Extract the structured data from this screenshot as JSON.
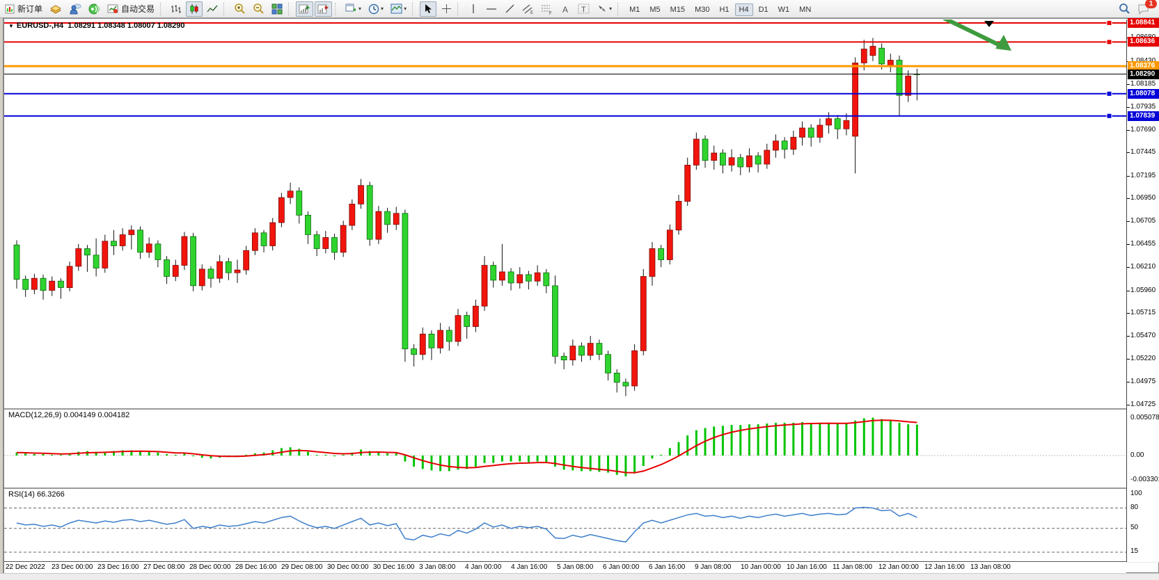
{
  "toolbar": {
    "new_order_label": "新订单",
    "auto_trading_label": "自动交易",
    "timeframes": [
      "M1",
      "M5",
      "M15",
      "M30",
      "H1",
      "H4",
      "D1",
      "W1",
      "MN"
    ],
    "active_timeframe": "H4",
    "notification_count": "1"
  },
  "chart": {
    "title_symbol": "EURUSD-,H4",
    "title_ohlc": "1.08291 1.08348 1.08007 1.08290"
  },
  "indicators": {
    "macd_label": "MACD(12,26,9) 0.004149 0.004182",
    "rsi_label": "RSI(14) 66.3266"
  },
  "chart_data": {
    "type": "candlestick",
    "symbol_period": "EURUSD-,H4",
    "current": {
      "open": "1.08291",
      "high": "1.08348",
      "low": "1.08007",
      "close": "1.08290"
    },
    "up_color": "#f2150d",
    "down_color": "#2fd42f",
    "price_axis_ticks": [
      "1.08680",
      "1.08430",
      "1.08185",
      "1.07935",
      "1.07690",
      "1.07445",
      "1.07195",
      "1.06950",
      "1.06705",
      "1.06455",
      "1.06210",
      "1.05960",
      "1.05715",
      "1.05470",
      "1.05220",
      "1.04975",
      "1.04725"
    ],
    "price_badges": [
      {
        "label": "1.08841",
        "price": 1.08841,
        "bg": "#e60000",
        "fg": "#ffffff"
      },
      {
        "label": "1.08636",
        "price": 1.08636,
        "bg": "#e60000",
        "fg": "#ffffff"
      },
      {
        "label": "1.08376",
        "price": 1.08376,
        "bg": "#ff9900",
        "fg": "#ffffff"
      },
      {
        "label": "1.08290",
        "price": 1.0829,
        "bg": "#000000",
        "fg": "#ffffff"
      },
      {
        "label": "1.08078",
        "price": 1.08078,
        "bg": "#0000d8",
        "fg": "#ffffff"
      },
      {
        "label": "1.07839",
        "price": 1.07839,
        "bg": "#0000d8",
        "fg": "#ffffff"
      }
    ],
    "h_lines": [
      {
        "price": 1.08841,
        "color": "#e60000",
        "width": 2,
        "handle": true
      },
      {
        "price": 1.08636,
        "color": "#e60000",
        "width": 2,
        "handle": true
      },
      {
        "price": 1.08376,
        "color": "#ff9900",
        "width": 3,
        "handle": false
      },
      {
        "price": 1.0829,
        "color": "#000000",
        "width": 1,
        "handle": false
      },
      {
        "price": 1.08078,
        "color": "#0000d8",
        "width": 2,
        "handle": true
      },
      {
        "price": 1.07839,
        "color": "#0000d8",
        "width": 2,
        "handle": true
      }
    ],
    "dates": [
      "22 Dec 2022",
      "23 Dec 00:00",
      "23 Dec 16:00",
      "27 Dec 08:00",
      "28 Dec 00:00",
      "28 Dec 16:00",
      "29 Dec 08:00",
      "30 Dec 00:00",
      "30 Dec 16:00",
      "3 Jan 08:00",
      "4 Jan 00:00",
      "4 Jan 16:00",
      "5 Jan 08:00",
      "6 Jan 00:00",
      "6 Jan 16:00",
      "9 Jan 08:00",
      "10 Jan 00:00",
      "10 Jan 16:00",
      "11 Jan 08:00",
      "12 Jan 00:00",
      "12 Jan 16:00",
      "13 Jan 08:00"
    ],
    "candles": [
      [
        1.0645,
        1.065,
        1.0598,
        1.0608
      ],
      [
        1.0608,
        1.0612,
        1.0589,
        1.0597
      ],
      [
        1.0597,
        1.0614,
        1.0592,
        1.0609
      ],
      [
        1.0609,
        1.0613,
        1.0586,
        1.0596
      ],
      [
        1.0596,
        1.0611,
        1.059,
        1.0606
      ],
      [
        1.0606,
        1.0609,
        1.0587,
        1.0599
      ],
      [
        1.0599,
        1.0627,
        1.0595,
        1.0622
      ],
      [
        1.0622,
        1.0646,
        1.0617,
        1.0641
      ],
      [
        1.0641,
        1.0645,
        1.0616,
        1.0634
      ],
      [
        1.0634,
        1.0652,
        1.0611,
        1.062
      ],
      [
        1.062,
        1.0656,
        1.0615,
        1.0649
      ],
      [
        1.0649,
        1.0661,
        1.0634,
        1.0644
      ],
      [
        1.0644,
        1.0663,
        1.0639,
        1.0656
      ],
      [
        1.0656,
        1.0666,
        1.064,
        1.0661
      ],
      [
        1.0661,
        1.0665,
        1.063,
        1.0637
      ],
      [
        1.0637,
        1.0653,
        1.0631,
        1.0646
      ],
      [
        1.0646,
        1.065,
        1.0621,
        1.0629
      ],
      [
        1.0629,
        1.0633,
        1.0603,
        1.0611
      ],
      [
        1.0611,
        1.0629,
        1.0606,
        1.0623
      ],
      [
        1.0623,
        1.0659,
        1.0618,
        1.0654
      ],
      [
        1.0654,
        1.0658,
        1.0595,
        1.0601
      ],
      [
        1.0601,
        1.0624,
        1.0596,
        1.0619
      ],
      [
        1.0619,
        1.0622,
        1.0599,
        1.0609
      ],
      [
        1.0609,
        1.0634,
        1.0604,
        1.0627
      ],
      [
        1.0627,
        1.0631,
        1.0607,
        1.0615
      ],
      [
        1.0615,
        1.0629,
        1.0604,
        1.0618
      ],
      [
        1.0618,
        1.0644,
        1.0613,
        1.0639
      ],
      [
        1.0639,
        1.0663,
        1.0634,
        1.0658
      ],
      [
        1.0658,
        1.0661,
        1.0637,
        1.0644
      ],
      [
        1.0644,
        1.0674,
        1.0639,
        1.0669
      ],
      [
        1.0669,
        1.0701,
        1.0664,
        1.0696
      ],
      [
        1.0696,
        1.0712,
        1.0689,
        1.0703
      ],
      [
        1.0703,
        1.0707,
        1.0668,
        1.0677
      ],
      [
        1.0677,
        1.0681,
        1.0646,
        1.0656
      ],
      [
        1.0656,
        1.066,
        1.0633,
        1.0641
      ],
      [
        1.0641,
        1.066,
        1.0636,
        1.0653
      ],
      [
        1.0653,
        1.0657,
        1.0629,
        1.0637
      ],
      [
        1.0637,
        1.0671,
        1.0632,
        1.0666
      ],
      [
        1.0666,
        1.0694,
        1.0661,
        1.0689
      ],
      [
        1.0689,
        1.0716,
        1.0684,
        1.0709
      ],
      [
        1.0709,
        1.0713,
        1.0644,
        1.0651
      ],
      [
        1.0651,
        1.0687,
        1.0646,
        1.0681
      ],
      [
        1.0681,
        1.0685,
        1.0658,
        1.0667
      ],
      [
        1.0667,
        1.0686,
        1.0661,
        1.0679
      ],
      [
        1.0679,
        1.0683,
        1.0519,
        1.0533
      ],
      [
        1.0533,
        1.0538,
        1.0514,
        1.0527
      ],
      [
        1.0527,
        1.0556,
        1.0521,
        1.0549
      ],
      [
        1.0549,
        1.0553,
        1.0521,
        1.0534
      ],
      [
        1.0534,
        1.0561,
        1.0528,
        1.0553
      ],
      [
        1.0553,
        1.0557,
        1.0531,
        1.0541
      ],
      [
        1.0541,
        1.0576,
        1.0536,
        1.0569
      ],
      [
        1.0569,
        1.0573,
        1.0544,
        1.0557
      ],
      [
        1.0557,
        1.0586,
        1.0551,
        1.0579
      ],
      [
        1.0579,
        1.0633,
        1.0574,
        1.0623
      ],
      [
        1.0623,
        1.0627,
        1.0599,
        1.0607
      ],
      [
        1.0607,
        1.0646,
        1.0601,
        1.0616
      ],
      [
        1.0616,
        1.062,
        1.0596,
        1.0604
      ],
      [
        1.0604,
        1.0621,
        1.0598,
        1.0613
      ],
      [
        1.0613,
        1.0617,
        1.0597,
        1.0606
      ],
      [
        1.0606,
        1.0623,
        1.0601,
        1.0615
      ],
      [
        1.0615,
        1.0619,
        1.0593,
        1.0601
      ],
      [
        1.0601,
        1.0612,
        1.0517,
        1.0525
      ],
      [
        1.0525,
        1.0529,
        1.0511,
        1.0521
      ],
      [
        1.0521,
        1.0543,
        1.0515,
        1.0536
      ],
      [
        1.0536,
        1.054,
        1.0519,
        1.0526
      ],
      [
        1.0526,
        1.0547,
        1.0521,
        1.0539
      ],
      [
        1.0539,
        1.0543,
        1.0521,
        1.0527
      ],
      [
        1.0527,
        1.0531,
        1.0499,
        1.0507
      ],
      [
        1.0507,
        1.0511,
        1.0486,
        1.0497
      ],
      [
        1.0497,
        1.0501,
        1.0482,
        1.0493
      ],
      [
        1.0493,
        1.0538,
        1.0488,
        1.0531
      ],
      [
        1.0531,
        1.0619,
        1.0526,
        1.0611
      ],
      [
        1.0611,
        1.0648,
        1.0601,
        1.0641
      ],
      [
        1.0641,
        1.0645,
        1.0621,
        1.0629
      ],
      [
        1.0629,
        1.0667,
        1.0624,
        1.0661
      ],
      [
        1.0661,
        1.0699,
        1.0656,
        1.0692
      ],
      [
        1.0692,
        1.0739,
        1.0687,
        1.0731
      ],
      [
        1.0731,
        1.0766,
        1.0726,
        1.0759
      ],
      [
        1.0759,
        1.0763,
        1.0728,
        1.0736
      ],
      [
        1.0736,
        1.0752,
        1.0726,
        1.0744
      ],
      [
        1.0744,
        1.0748,
        1.0722,
        1.0731
      ],
      [
        1.0731,
        1.0748,
        1.0724,
        1.0739
      ],
      [
        1.0739,
        1.0743,
        1.072,
        1.0729
      ],
      [
        1.0729,
        1.0749,
        1.0723,
        1.0741
      ],
      [
        1.0741,
        1.0745,
        1.0723,
        1.0732
      ],
      [
        1.0732,
        1.0754,
        1.0727,
        1.0747
      ],
      [
        1.0747,
        1.0764,
        1.0739,
        1.0757
      ],
      [
        1.0757,
        1.0761,
        1.0738,
        1.0748
      ],
      [
        1.0748,
        1.0768,
        1.0742,
        1.0761
      ],
      [
        1.0761,
        1.0778,
        1.0752,
        1.0771
      ],
      [
        1.0771,
        1.0775,
        1.0751,
        1.0761
      ],
      [
        1.0761,
        1.0781,
        1.0755,
        1.0774
      ],
      [
        1.0774,
        1.0788,
        1.0765,
        1.0781
      ],
      [
        1.0781,
        1.0785,
        1.0759,
        1.077
      ],
      [
        1.077,
        1.0787,
        1.0763,
        1.0779
      ],
      [
        1.0762,
        1.0847,
        1.0722,
        1.0841
      ],
      [
        1.0841,
        1.0866,
        1.0833,
        1.0856
      ],
      [
        1.0849,
        1.0868,
        1.0843,
        1.0859
      ],
      [
        1.0857,
        1.0862,
        1.0834,
        1.084
      ],
      [
        1.0838,
        1.0851,
        1.0831,
        1.0844
      ],
      [
        1.0844,
        1.0849,
        1.0784,
        1.0806
      ],
      [
        1.0806,
        1.0833,
        1.0799,
        1.0827
      ],
      [
        1.08291,
        1.08348,
        1.08007,
        1.0829
      ]
    ],
    "macd": {
      "params": "12,26,9",
      "main_value": "0.004149",
      "signal_value": "0.004182",
      "axis_labels": [
        {
          "text": "0.005078",
          "value": 0.005078
        },
        {
          "text": "0.00",
          "value": 0
        },
        {
          "text": "-0.003301",
          "value": -0.003301
        }
      ],
      "histogram_color": "#00c400",
      "signal_color": "#e60000",
      "values": [
        0.0004,
        0.0003,
        0.0002,
        0.0002,
        0.0001,
        0.0001,
        0.0003,
        0.0005,
        0.0006,
        0.0005,
        0.0005,
        0.0006,
        0.0007,
        0.0007,
        0.0006,
        0.0005,
        0.0004,
        0.0002,
        0.0001,
        0.0003,
        -0.0001,
        -0.0003,
        -0.0004,
        -0.0003,
        -0.0002,
        -0.0001,
        0.0001,
        0.0003,
        0.0004,
        0.0007,
        0.001,
        0.0011,
        0.0009,
        0.0005,
        0.0001,
        0.0001,
        -0.0001,
        0.0001,
        0.0004,
        0.0008,
        0.0006,
        0.0005,
        0.0003,
        0.0003,
        -0.0008,
        -0.0015,
        -0.0018,
        -0.002,
        -0.0021,
        -0.0021,
        -0.0019,
        -0.0018,
        -0.0015,
        -0.001,
        -0.001,
        -0.0008,
        -0.0008,
        -0.0008,
        -0.0009,
        -0.0008,
        -0.0009,
        -0.0015,
        -0.0019,
        -0.002,
        -0.0021,
        -0.0021,
        -0.0022,
        -0.0023,
        -0.0026,
        -0.0028,
        -0.0024,
        -0.0014,
        -0.0004,
        0.0001,
        0.001,
        0.0018,
        0.0027,
        0.0034,
        0.0037,
        0.0039,
        0.004,
        0.0041,
        0.0041,
        0.0042,
        0.0042,
        0.0043,
        0.0044,
        0.0044,
        0.0044,
        0.0045,
        0.0044,
        0.0044,
        0.0044,
        0.0043,
        0.0043,
        0.0047,
        0.005,
        0.00508,
        0.0049,
        0.0047,
        0.0044,
        0.0042,
        0.004149
      ]
    },
    "rsi": {
      "period": "14",
      "value": "66.3266",
      "line_color": "#3d7ecb",
      "axis_labels": [
        {
          "text": "100",
          "value": 100
        },
        {
          "text": "80",
          "value": 80
        },
        {
          "text": "50",
          "value": 50
        },
        {
          "text": "15",
          "value": 15
        }
      ],
      "dashed_levels": [
        80,
        50,
        15
      ],
      "values": [
        58,
        55,
        56,
        53,
        55,
        52,
        58,
        62,
        60,
        58,
        61,
        59,
        62,
        63,
        60,
        62,
        59,
        56,
        58,
        63,
        50,
        53,
        51,
        55,
        53,
        54,
        57,
        60,
        58,
        62,
        66,
        68,
        61,
        55,
        51,
        53,
        50,
        55,
        60,
        65,
        55,
        58,
        54,
        57,
        35,
        33,
        40,
        37,
        42,
        39,
        47,
        43,
        49,
        58,
        52,
        55,
        50,
        53,
        51,
        53,
        49,
        36,
        35,
        40,
        37,
        41,
        38,
        35,
        32,
        30,
        45,
        58,
        62,
        58,
        62,
        66,
        70,
        72,
        68,
        69,
        66,
        68,
        65,
        68,
        66,
        69,
        71,
        68,
        70,
        72,
        69,
        71,
        72,
        70,
        71,
        80,
        81,
        80,
        76,
        77,
        68,
        72,
        66.3266
      ]
    },
    "annotations": {
      "arrow_color": "#3f9b3f",
      "marker_color": "#000000"
    }
  }
}
